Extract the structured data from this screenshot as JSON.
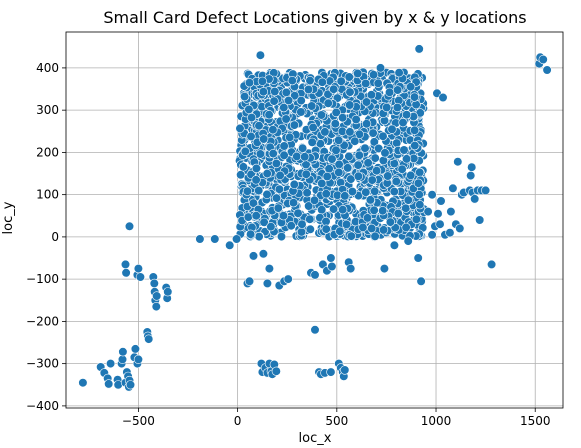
{
  "chart_data": {
    "type": "scatter",
    "title": "Small Card Defect Locations given by x & y locations",
    "xlabel": "loc_x",
    "ylabel": "loc_y",
    "xlim": [
      -865,
      1640
    ],
    "ylim": [
      -405,
      485
    ],
    "xticks": [
      -500,
      0,
      500,
      1000,
      1500
    ],
    "yticks": [
      -400,
      -300,
      -200,
      -100,
      0,
      100,
      200,
      300,
      400
    ],
    "xtick_labels": [
      "−500",
      "0",
      "500",
      "1000",
      "1500"
    ],
    "ytick_labels": [
      "−400",
      "−300",
      "−200",
      "−100",
      "0",
      "100",
      "200",
      "300",
      "400"
    ],
    "grid": true,
    "marker_color": "#1f77b4",
    "marker_edge_color": "#ffffff",
    "dense_regions": [
      {
        "x": [
          10,
          940
        ],
        "y": [
          0,
          390
        ]
      }
    ],
    "points": [
      [
        -780,
        -345
      ],
      [
        -690,
        -308
      ],
      [
        -672,
        -322
      ],
      [
        -655,
        -335
      ],
      [
        -650,
        -348
      ],
      [
        -640,
        -300
      ],
      [
        -605,
        -338
      ],
      [
        -602,
        -350
      ],
      [
        -585,
        -300
      ],
      [
        -580,
        -290
      ],
      [
        -578,
        -272
      ],
      [
        -565,
        -345
      ],
      [
        -558,
        -320
      ],
      [
        -552,
        -330
      ],
      [
        -545,
        -340
      ],
      [
        -548,
        -355
      ],
      [
        -540,
        -350
      ],
      [
        -520,
        -285
      ],
      [
        -515,
        -265
      ],
      [
        -505,
        -300
      ],
      [
        -500,
        -290
      ],
      [
        -565,
        -65
      ],
      [
        -562,
        -85
      ],
      [
        -505,
        -90
      ],
      [
        -500,
        -75
      ],
      [
        -490,
        -95
      ],
      [
        -545,
        25
      ],
      [
        -455,
        -225
      ],
      [
        -452,
        -235
      ],
      [
        -448,
        -242
      ],
      [
        -425,
        -95
      ],
      [
        -420,
        -110
      ],
      [
        -418,
        -130
      ],
      [
        -415,
        -150
      ],
      [
        -410,
        -165
      ],
      [
        -408,
        -140
      ],
      [
        -360,
        -120
      ],
      [
        -355,
        -145
      ],
      [
        -352,
        -130
      ],
      [
        -190,
        -5
      ],
      [
        -115,
        -5
      ],
      [
        -40,
        -20
      ],
      [
        -5,
        -5
      ],
      [
        50,
        -110
      ],
      [
        60,
        -105
      ],
      [
        80,
        -45
      ],
      [
        130,
        -40
      ],
      [
        150,
        -110
      ],
      [
        160,
        -75
      ],
      [
        210,
        -115
      ],
      [
        235,
        -105
      ],
      [
        255,
        -100
      ],
      [
        120,
        -300
      ],
      [
        125,
        -320
      ],
      [
        140,
        -310
      ],
      [
        150,
        -322
      ],
      [
        160,
        -300
      ],
      [
        170,
        -318
      ],
      [
        175,
        -325
      ],
      [
        185,
        -302
      ],
      [
        195,
        -318
      ],
      [
        390,
        -220
      ],
      [
        410,
        -320
      ],
      [
        420,
        -325
      ],
      [
        440,
        -322
      ],
      [
        470,
        -320
      ],
      [
        510,
        -300
      ],
      [
        520,
        -310
      ],
      [
        530,
        -320
      ],
      [
        535,
        -330
      ],
      [
        540,
        -315
      ],
      [
        370,
        -85
      ],
      [
        390,
        -90
      ],
      [
        430,
        -65
      ],
      [
        450,
        -80
      ],
      [
        470,
        -50
      ],
      [
        475,
        -70
      ],
      [
        560,
        -60
      ],
      [
        570,
        -75
      ],
      [
        740,
        -75
      ],
      [
        790,
        -20
      ],
      [
        860,
        -10
      ],
      [
        115,
        430
      ],
      [
        365,
        370
      ],
      [
        720,
        400
      ],
      [
        915,
        445
      ],
      [
        980,
        100
      ],
      [
        1005,
        340
      ],
      [
        1035,
        330
      ],
      [
        1025,
        85
      ],
      [
        910,
        -50
      ],
      [
        925,
        -105
      ],
      [
        960,
        60
      ],
      [
        980,
        5
      ],
      [
        995,
        25
      ],
      [
        1010,
        55
      ],
      [
        1020,
        30
      ],
      [
        1045,
        5
      ],
      [
        1070,
        10
      ],
      [
        1075,
        60
      ],
      [
        1085,
        115
      ],
      [
        1100,
        30
      ],
      [
        1110,
        178
      ],
      [
        1120,
        20
      ],
      [
        1130,
        100
      ],
      [
        1140,
        105
      ],
      [
        1170,
        110
      ],
      [
        1175,
        145
      ],
      [
        1180,
        165
      ],
      [
        1185,
        105
      ],
      [
        1195,
        90
      ],
      [
        1210,
        110
      ],
      [
        1220,
        40
      ],
      [
        1230,
        110
      ],
      [
        1250,
        110
      ],
      [
        1280,
        -65
      ],
      [
        1520,
        410
      ],
      [
        1525,
        425
      ],
      [
        1540,
        420
      ],
      [
        1560,
        395
      ]
    ]
  }
}
